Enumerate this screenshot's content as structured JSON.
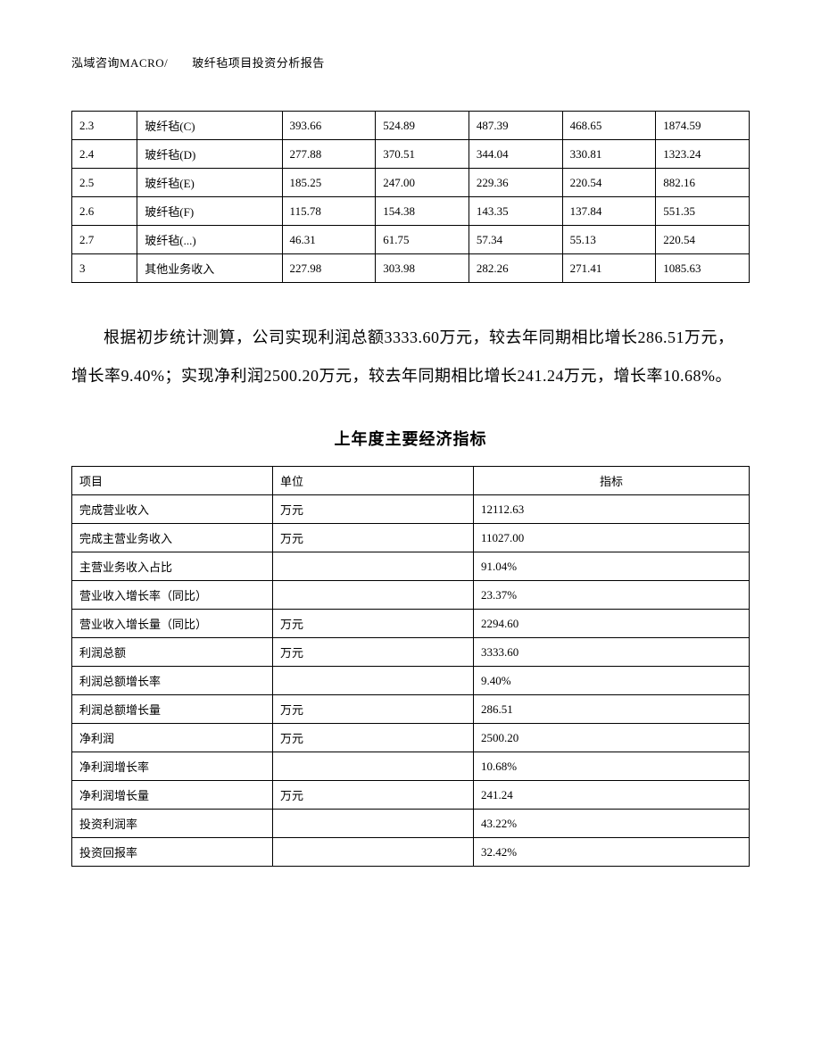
{
  "header": "泓域咨询MACRO/　　玻纤毡项目投资分析报告",
  "table1": {
    "rows": [
      {
        "id": "2.3",
        "name": "玻纤毡(C)",
        "v1": "393.66",
        "v2": "524.89",
        "v3": "487.39",
        "v4": "468.65",
        "v5": "1874.59"
      },
      {
        "id": "2.4",
        "name": "玻纤毡(D)",
        "v1": "277.88",
        "v2": "370.51",
        "v3": "344.04",
        "v4": "330.81",
        "v5": "1323.24"
      },
      {
        "id": "2.5",
        "name": "玻纤毡(E)",
        "v1": "185.25",
        "v2": "247.00",
        "v3": "229.36",
        "v4": "220.54",
        "v5": "882.16"
      },
      {
        "id": "2.6",
        "name": "玻纤毡(F)",
        "v1": "115.78",
        "v2": "154.38",
        "v3": "143.35",
        "v4": "137.84",
        "v5": "551.35"
      },
      {
        "id": "2.7",
        "name": "玻纤毡(...)",
        "v1": "46.31",
        "v2": "61.75",
        "v3": "57.34",
        "v4": "55.13",
        "v5": "220.54"
      },
      {
        "id": "3",
        "name": "其他业务收入",
        "v1": "227.98",
        "v2": "303.98",
        "v3": "282.26",
        "v4": "271.41",
        "v5": "1085.63"
      }
    ]
  },
  "paragraph": "根据初步统计测算，公司实现利润总额3333.60万元，较去年同期相比增长286.51万元，增长率9.40%；实现净利润2500.20万元，较去年同期相比增长241.24万元，增长率10.68%。",
  "section_title": "上年度主要经济指标",
  "table2": {
    "headers": {
      "item": "项目",
      "unit": "单位",
      "value": "指标"
    },
    "rows": [
      {
        "item": "完成营业收入",
        "unit": "万元",
        "value": "12112.63"
      },
      {
        "item": "完成主营业务收入",
        "unit": "万元",
        "value": "11027.00"
      },
      {
        "item": "主营业务收入占比",
        "unit": "",
        "value": "91.04%"
      },
      {
        "item": "营业收入增长率（同比）",
        "unit": "",
        "value": "23.37%"
      },
      {
        "item": "营业收入增长量（同比）",
        "unit": "万元",
        "value": "2294.60"
      },
      {
        "item": "利润总额",
        "unit": "万元",
        "value": "3333.60"
      },
      {
        "item": "利润总额增长率",
        "unit": "",
        "value": "9.40%"
      },
      {
        "item": "利润总额增长量",
        "unit": "万元",
        "value": "286.51"
      },
      {
        "item": "净利润",
        "unit": "万元",
        "value": "2500.20"
      },
      {
        "item": "净利润增长率",
        "unit": "",
        "value": "10.68%"
      },
      {
        "item": "净利润增长量",
        "unit": "万元",
        "value": "241.24"
      },
      {
        "item": "投资利润率",
        "unit": "",
        "value": "43.22%"
      },
      {
        "item": "投资回报率",
        "unit": "",
        "value": "32.42%"
      }
    ]
  }
}
